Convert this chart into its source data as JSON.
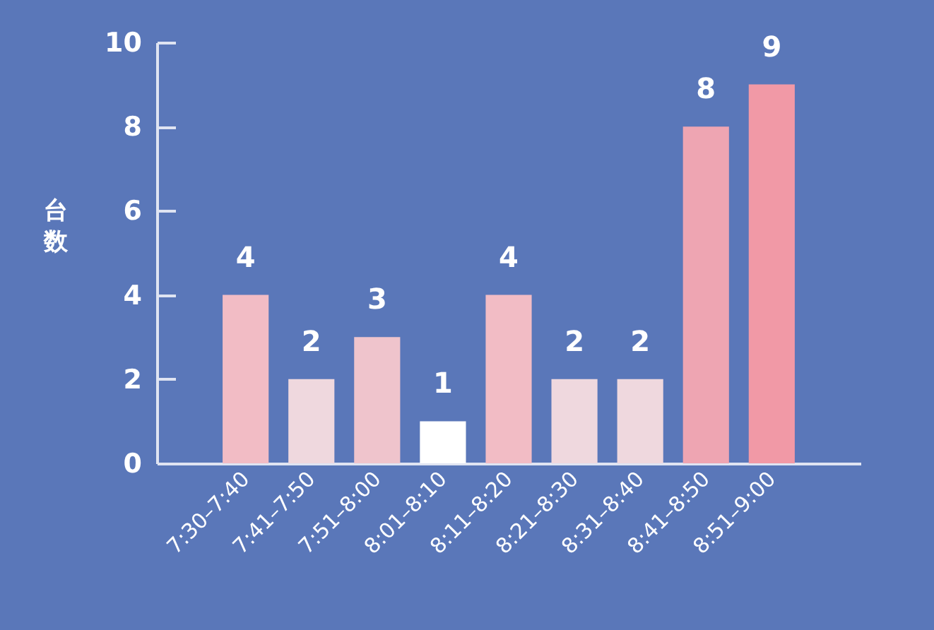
{
  "chart_data": {
    "type": "bar",
    "ylabel": "台数",
    "categories": [
      "7:30–7:40",
      "7:41–7:50",
      "7:51–8:00",
      "8:01–8:10",
      "8:11–8:20",
      "8:21–8:30",
      "8:31–8:40",
      "8:41–8:50",
      "8:51–9:00"
    ],
    "values": [
      4,
      2,
      3,
      1,
      4,
      2,
      2,
      8,
      9
    ],
    "colors": [
      "#f2bcc5",
      "#efd8de",
      "#efc4cc",
      "#ffffff",
      "#f2bcc5",
      "#efd8de",
      "#efd8de",
      "#eea5b2",
      "#f199a6"
    ],
    "ylim": [
      0,
      10
    ],
    "yticks": [
      0,
      2,
      4,
      6,
      8,
      10
    ],
    "data_labels": true
  }
}
